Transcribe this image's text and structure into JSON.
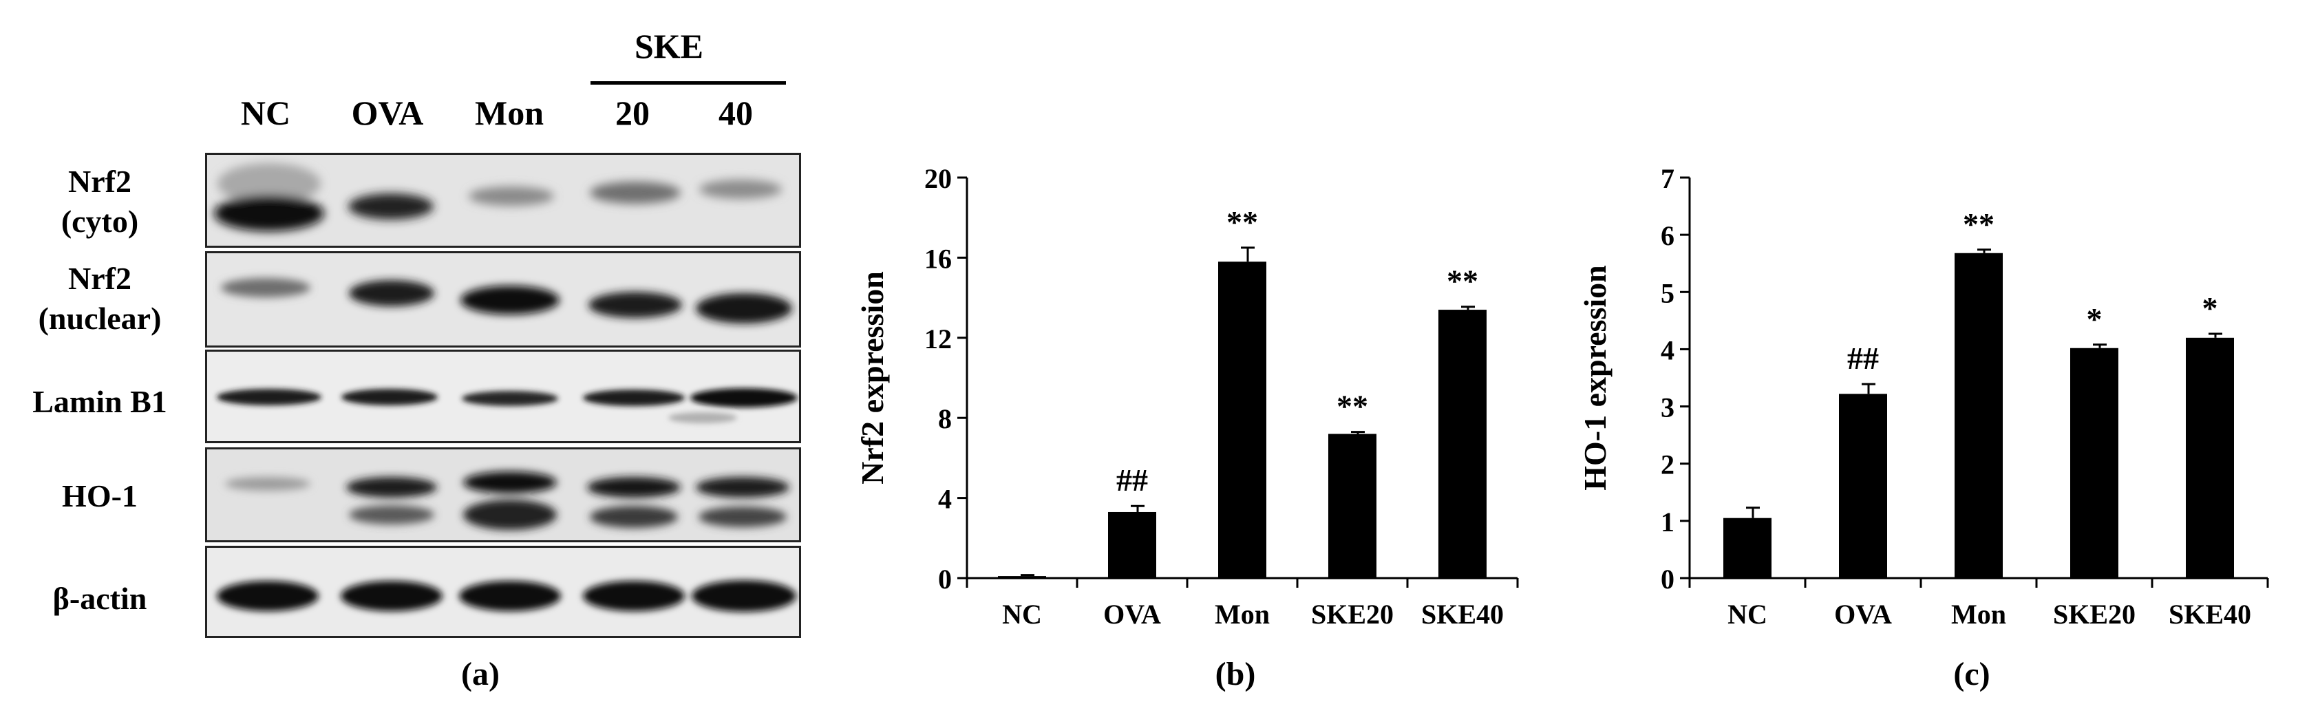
{
  "panel_a": {
    "group_label": "SKE",
    "lanes": [
      "NC",
      "OVA",
      "Mon",
      "20",
      "40"
    ],
    "rows": [
      {
        "label_line1": "Nrf2",
        "label_line2": "(cyto)"
      },
      {
        "label_line1": "Nrf2",
        "label_line2": "(nuclear)"
      },
      {
        "label_line1": "Lamin B1",
        "label_line2": ""
      },
      {
        "label_line1": "HO-1",
        "label_line2": ""
      },
      {
        "label_line1": "β-actin",
        "label_line2": ""
      }
    ],
    "band_intensity": {
      "nrf2_cyto_lower": [
        1.0,
        0.85,
        0.0,
        0.0,
        0.0
      ],
      "nrf2_cyto_upper": [
        0.0,
        0.0,
        0.35,
        0.5,
        0.35
      ],
      "nrf2_nuclear": [
        0.3,
        0.9,
        1.0,
        0.9,
        0.95
      ],
      "lamin_b1": [
        0.9,
        0.9,
        0.85,
        0.9,
        0.95
      ],
      "ho1": [
        0.15,
        0.85,
        1.0,
        0.95,
        0.9
      ],
      "beta_actin": [
        1.0,
        1.0,
        1.0,
        1.0,
        1.0
      ]
    },
    "caption": "(a)"
  },
  "chart_data": [
    {
      "type": "bar",
      "caption": "(b)",
      "categories": [
        "NC",
        "OVA",
        "Mon",
        "SKE20",
        "SKE40"
      ],
      "values": [
        0.1,
        3.3,
        15.8,
        7.2,
        13.4
      ],
      "errors": [
        0.05,
        0.3,
        0.7,
        0.1,
        0.15
      ],
      "annotations": [
        "",
        "##",
        "**",
        "**",
        "**"
      ],
      "ylabel": "Nrf2 expression",
      "xlabel": "",
      "ylim": [
        0,
        20
      ],
      "yticks": [
        0,
        4,
        8,
        12,
        16,
        20
      ],
      "ytick_labels": [
        "0",
        "4",
        "8",
        "12",
        "16",
        "20"
      ],
      "color": "#000000"
    },
    {
      "type": "bar",
      "caption": "(c)",
      "categories": [
        "NC",
        "OVA",
        "Mon",
        "SKE20",
        "SKE40"
      ],
      "values": [
        1.05,
        3.22,
        5.68,
        4.02,
        4.2
      ],
      "errors": [
        0.18,
        0.17,
        0.06,
        0.06,
        0.07
      ],
      "annotations": [
        "",
        "##",
        "**",
        "*",
        "*"
      ],
      "ylabel": "HO-1 expression",
      "xlabel": "",
      "ylim": [
        0,
        7
      ],
      "yticks": [
        0,
        1,
        2,
        3,
        4,
        5,
        6,
        7
      ],
      "ytick_labels": [
        "0",
        "1",
        "2",
        "3",
        "4",
        "5",
        "6",
        "7"
      ],
      "color": "#000000"
    }
  ]
}
